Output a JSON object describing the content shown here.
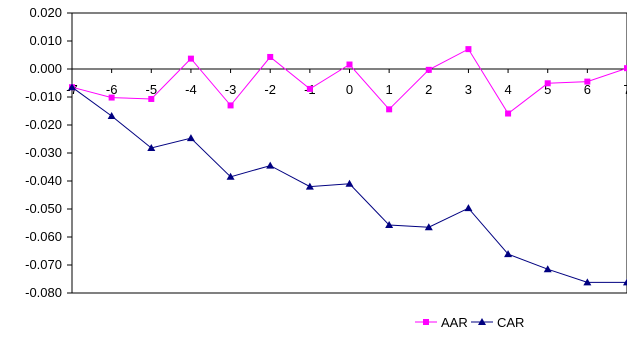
{
  "chart_data": {
    "type": "line",
    "title": "",
    "xlabel": "",
    "ylabel": "",
    "x": [
      -7,
      -6,
      -5,
      -4,
      -3,
      -2,
      -1,
      0,
      1,
      2,
      3,
      4,
      5,
      6,
      7
    ],
    "x_tick_labels": [
      "-7",
      "-6",
      "-5",
      "-4",
      "-3",
      "-2",
      "-1",
      "0",
      "1",
      "2",
      "3",
      "4",
      "5",
      "6",
      "7"
    ],
    "y_ticks": [
      0.02,
      0.01,
      0.0,
      -0.01,
      -0.02,
      -0.03,
      -0.04,
      -0.05,
      -0.06,
      -0.07,
      -0.08
    ],
    "y_tick_labels": [
      "0.020",
      "0.010",
      "0.000",
      "-0.010",
      "-0.020",
      "-0.030",
      "-0.040",
      "-0.050",
      "-0.060",
      "-0.070",
      "-0.080"
    ],
    "ylim": [
      -0.08,
      0.02
    ],
    "grid": false,
    "legend_position": "bottom-right",
    "series": [
      {
        "name": "AAR",
        "color": "#ff00ff",
        "marker": "square",
        "values": [
          -0.0065,
          -0.0102,
          -0.0107,
          0.0037,
          -0.013,
          0.0043,
          -0.0071,
          0.0016,
          -0.0144,
          -0.0003,
          0.0071,
          -0.0159,
          -0.0051,
          -0.0045,
          0.0003
        ]
      },
      {
        "name": "CAR",
        "color": "#000080",
        "marker": "triangle",
        "values": [
          -0.0065,
          -0.0168,
          -0.0282,
          -0.0247,
          -0.0385,
          -0.0345,
          -0.042,
          -0.041,
          -0.0557,
          -0.0565,
          -0.0497,
          -0.0661,
          -0.0715,
          -0.0762,
          -0.0762
        ]
      }
    ]
  }
}
